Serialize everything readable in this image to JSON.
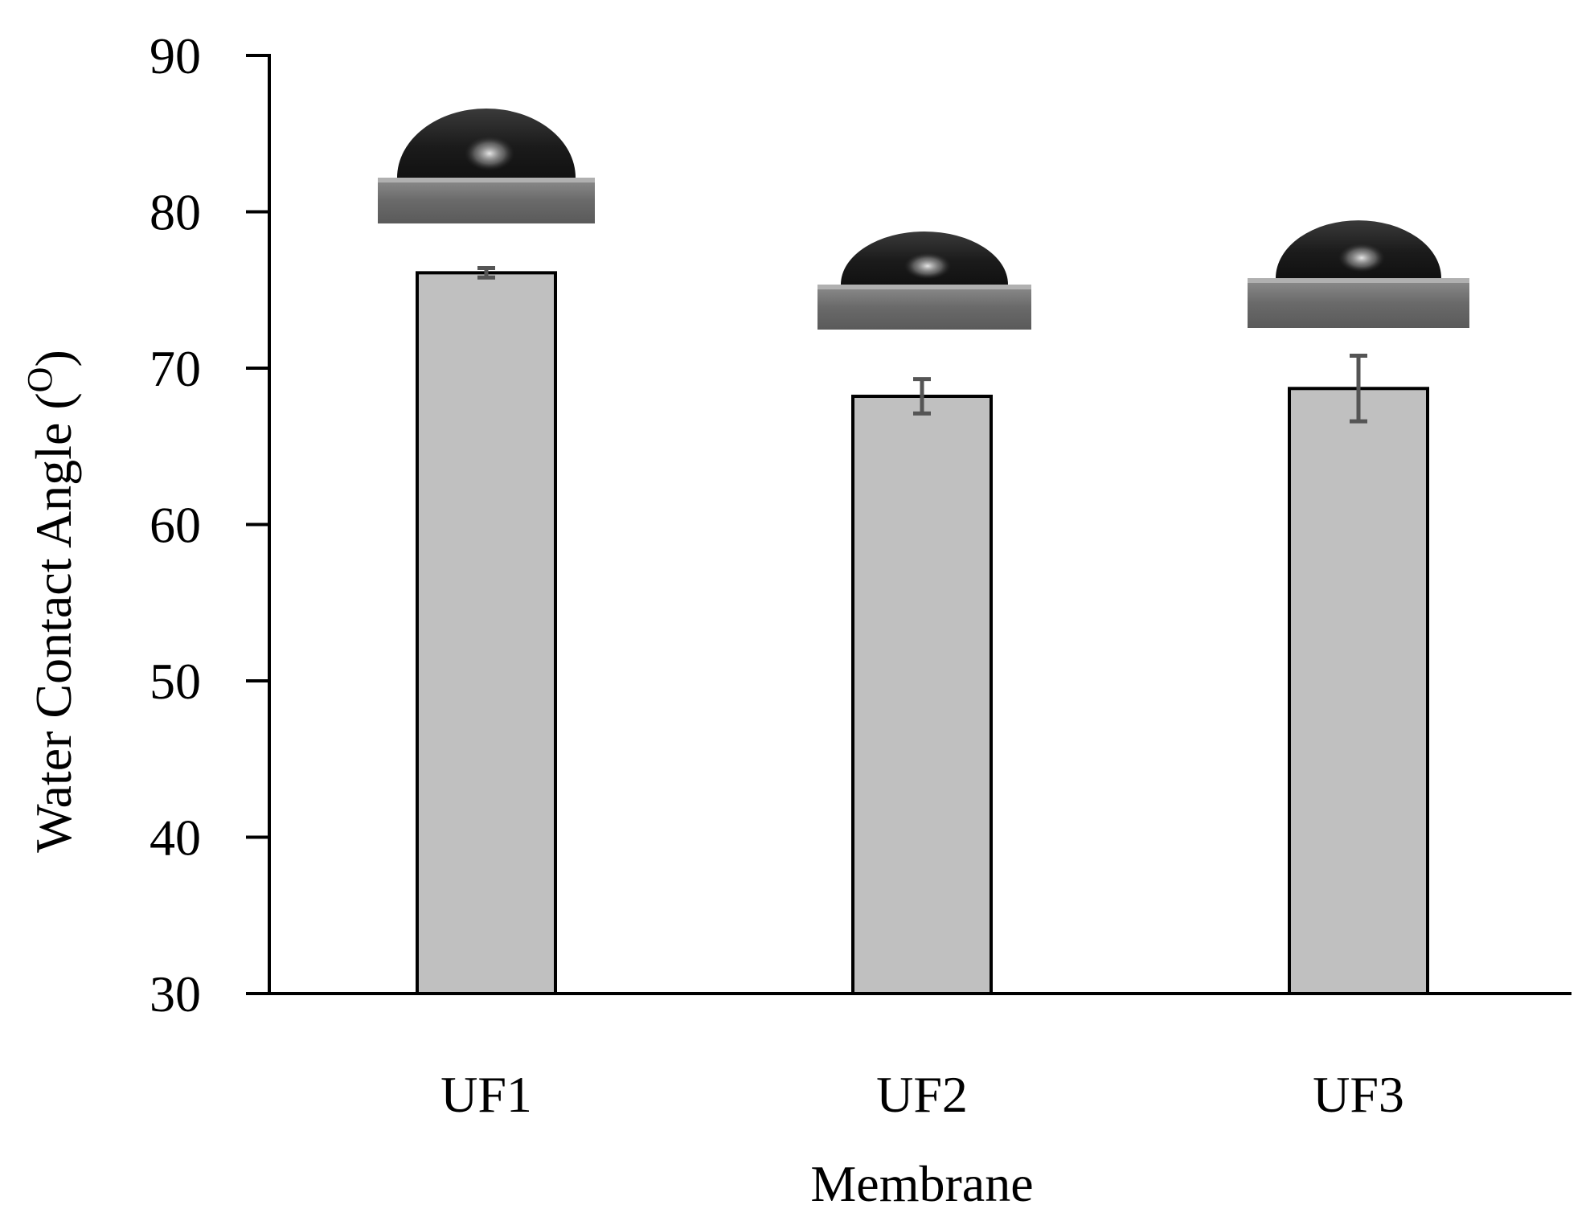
{
  "chart_data": {
    "type": "bar",
    "categories": [
      "UF1",
      "UF2",
      "UF3"
    ],
    "values": [
      76.1,
      68.2,
      68.7
    ],
    "errors": [
      0.3,
      1.1,
      2.1
    ],
    "xlabel": "Membrane",
    "ylabel_text": "Water Contact Angle (",
    "ylabel_sup": "O",
    "ylabel_close": ")",
    "ylim": [
      30,
      90
    ],
    "yticks": [
      30,
      40,
      50,
      60,
      70,
      80,
      90
    ],
    "grid": false,
    "legend": "none",
    "colors": {
      "bar_fill": "#c0c0c0",
      "bar_stroke": "#000000",
      "error_bar": "#555555"
    },
    "insets": [
      {
        "category": "UF1",
        "image": "water-droplet-photo"
      },
      {
        "category": "UF2",
        "image": "water-droplet-photo"
      },
      {
        "category": "UF3",
        "image": "water-droplet-photo"
      }
    ]
  }
}
